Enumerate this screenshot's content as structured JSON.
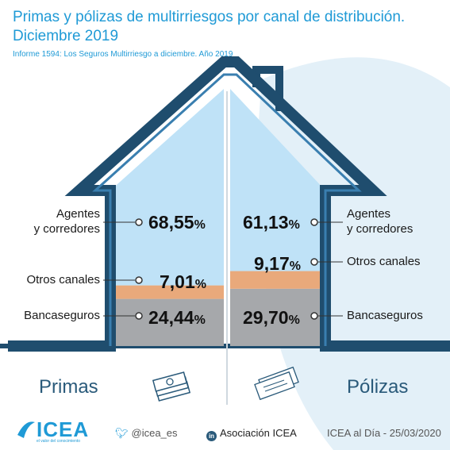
{
  "title": "Primas y pólizas de multirriesgos por canal de distribución. Diciembre 2019",
  "subtitle": "Informe 1594: Los Seguros Multirriesgo a diciembre. Año 2019",
  "percent_symbol": "%",
  "colors": {
    "agentes": "#bfe2f7",
    "otros": "#e9a97b",
    "banca": "#a6a8ab",
    "house_outline": "#1f4d6e",
    "accent": "#1f9ad6"
  },
  "chart_data": [
    {
      "type": "bar",
      "name": "Primas",
      "categories": [
        "Agentes y corredores",
        "Otros canales",
        "Bancaseguros"
      ],
      "values": [
        68.55,
        7.01,
        24.44
      ],
      "value_labels": [
        "68,55",
        "7,01",
        "24,44"
      ]
    },
    {
      "type": "bar",
      "name": "Pólizas",
      "categories": [
        "Agentes y corredores",
        "Otros canales",
        "Bancaseguros"
      ],
      "values": [
        61.13,
        9.17,
        29.7
      ],
      "value_labels": [
        "61,13",
        "9,17",
        "29,70"
      ]
    }
  ],
  "labels": {
    "agentes_line1": "Agentes",
    "agentes_line2": "y corredores",
    "otros": "Otros canales",
    "banca": "Bancaseguros"
  },
  "sides": {
    "left": "Primas",
    "right": "Pólizas"
  },
  "footer": {
    "brand": "ICEA",
    "brand_tagline": "el valor del conocimiento",
    "twitter": "@icea_es",
    "linkedin": "Asociación ICEA",
    "date": "ICEA al Día - 25/03/2020"
  },
  "icons": [
    "money-stack-icon",
    "document-stack-icon",
    "twitter-icon",
    "linkedin-icon",
    "icea-logo-icon"
  ]
}
